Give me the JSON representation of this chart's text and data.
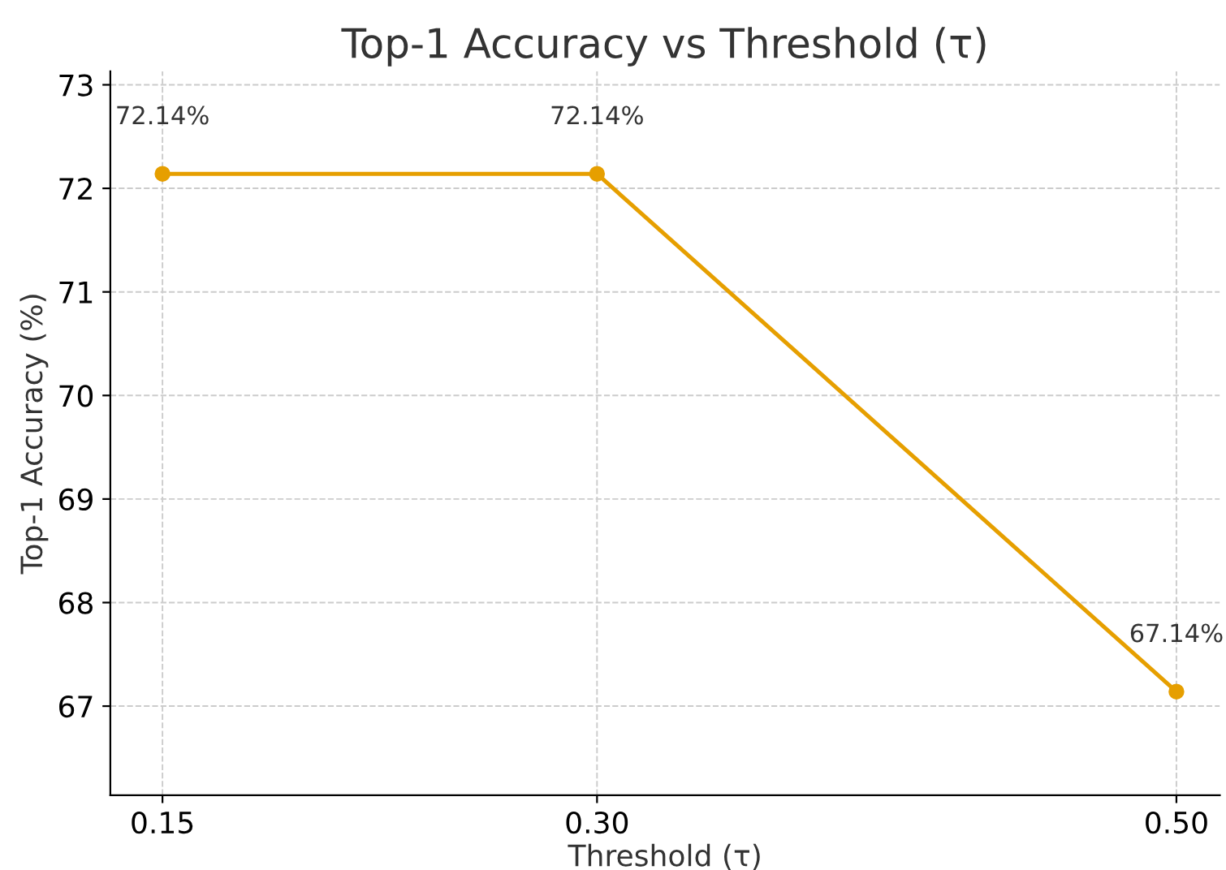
{
  "chart_data": {
    "type": "line",
    "title": "Top-1 Accuracy vs Threshold (τ)",
    "xlabel": "Threshold (τ)",
    "ylabel": "Top-1 Accuracy (%)",
    "x": [
      0.15,
      0.3,
      0.5
    ],
    "series": [
      {
        "color": "#e69f00",
        "values": [
          72.14,
          72.14,
          67.14
        ],
        "value_labels": [
          "72.14%",
          "72.14%",
          "67.14%"
        ]
      }
    ],
    "xlim": [
      0.132,
      0.515
    ],
    "xticks": [
      0.15,
      {
        "value": 0.3,
        "label": "0.30"
      },
      {
        "value": 0.5,
        "label": "0.50"
      }
    ],
    "ylim": [
      66.14,
      73.13
    ],
    "yticks": [
      67,
      68,
      69,
      70,
      71,
      72,
      73
    ],
    "grid": true,
    "marker": "circle",
    "line_style": "solid"
  }
}
